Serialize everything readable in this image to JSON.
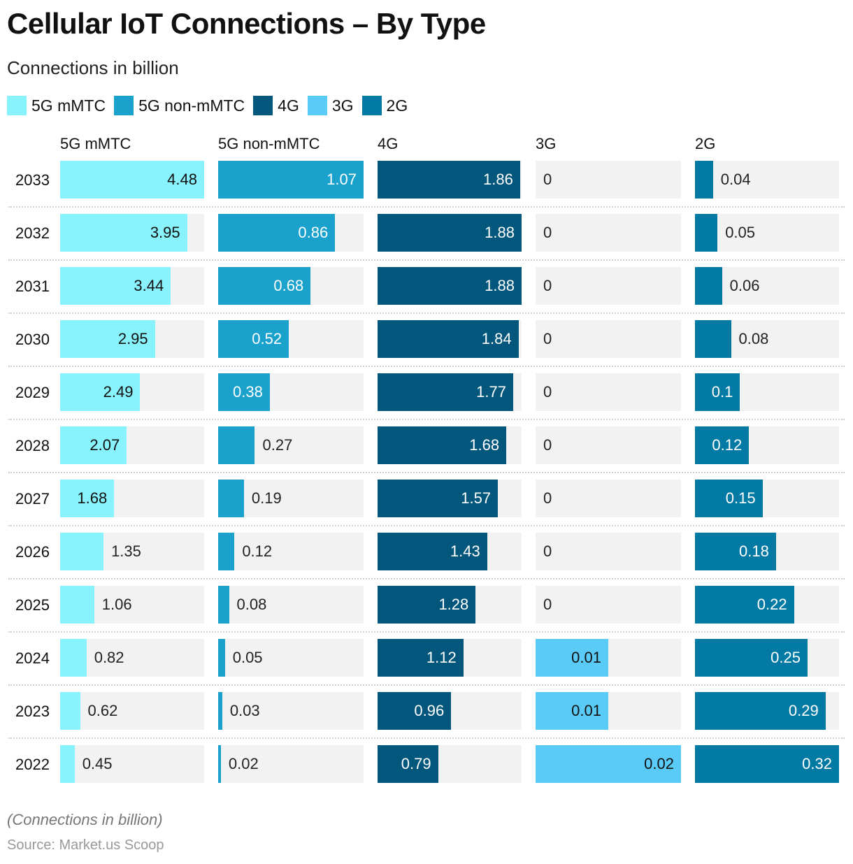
{
  "title": "Cellular IoT Connections – By Type",
  "subtitle": "Connections in billion",
  "note": "(Connections in billion)",
  "source": "Source: Market.us Scoop",
  "chart_data": {
    "type": "bar",
    "layout": "small-multiples horizontal bars, one panel per series, each panel scaled to its own max",
    "categories": [
      "2033",
      "2032",
      "2031",
      "2030",
      "2029",
      "2028",
      "2027",
      "2026",
      "2025",
      "2024",
      "2023",
      "2022"
    ],
    "series": [
      {
        "name": "5G mMTC",
        "color": "#88f3fc",
        "values": [
          4.48,
          3.95,
          3.44,
          2.95,
          2.49,
          2.07,
          1.68,
          1.35,
          1.06,
          0.82,
          0.62,
          0.45
        ]
      },
      {
        "name": "5G non-mMTC",
        "color": "#1aa2cd",
        "values": [
          1.07,
          0.86,
          0.68,
          0.52,
          0.38,
          0.27,
          0.19,
          0.12,
          0.08,
          0.05,
          0.03,
          0.02
        ]
      },
      {
        "name": "4G",
        "color": "#03567c",
        "values": [
          1.86,
          1.88,
          1.88,
          1.84,
          1.77,
          1.68,
          1.57,
          1.43,
          1.28,
          1.12,
          0.96,
          0.79
        ]
      },
      {
        "name": "3G",
        "color": "#5acbf7",
        "values": [
          0,
          0,
          0,
          0,
          0,
          0,
          0,
          0,
          0,
          0.01,
          0.01,
          0.02
        ]
      },
      {
        "name": "2G",
        "color": "#037aa4",
        "values": [
          0.04,
          0.05,
          0.06,
          0.08,
          0.1,
          0.12,
          0.15,
          0.18,
          0.22,
          0.25,
          0.29,
          0.32
        ]
      }
    ],
    "legend": "top-left",
    "grid": false
  }
}
